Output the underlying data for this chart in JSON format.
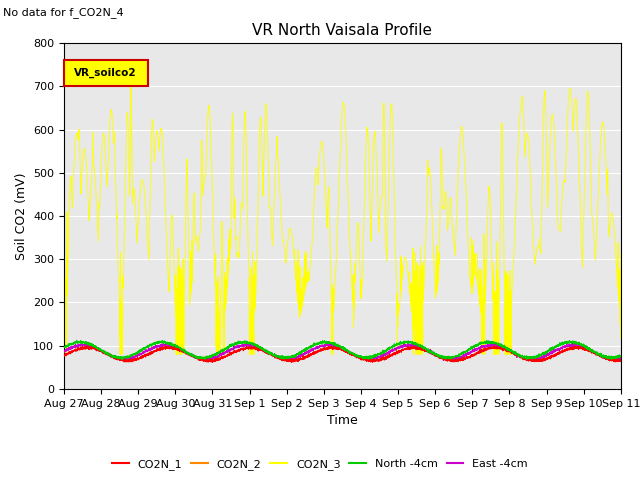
{
  "title": "VR North Vaisala Profile",
  "subtitle": "No data for f_CO2N_4",
  "ylabel": "Soil CO2 (mV)",
  "xlabel": "Time",
  "ylim": [
    0,
    800
  ],
  "bg_color": "#e8e8e8",
  "legend_box_label": "VR_soilco2",
  "legend_box_color": "#ffff00",
  "legend_box_border": "#cc0000",
  "date_labels": [
    "Aug 27",
    "Aug 28",
    "Aug 29",
    "Aug 30",
    "Aug 31",
    "Sep 1",
    "Sep 2",
    "Sep 3",
    "Sep 4",
    "Sep 5",
    "Sep 6",
    "Sep 7",
    "Sep 8",
    "Sep 9",
    "Sep 10",
    "Sep 11"
  ],
  "series_colors": {
    "CO2N_1": "#ff0000",
    "CO2N_2": "#ff8800",
    "CO2N_3": "#ffff00",
    "North_4cm": "#00cc00",
    "East_4cm": "#cc00cc"
  },
  "title_fontsize": 11,
  "label_fontsize": 9,
  "tick_fontsize": 8
}
